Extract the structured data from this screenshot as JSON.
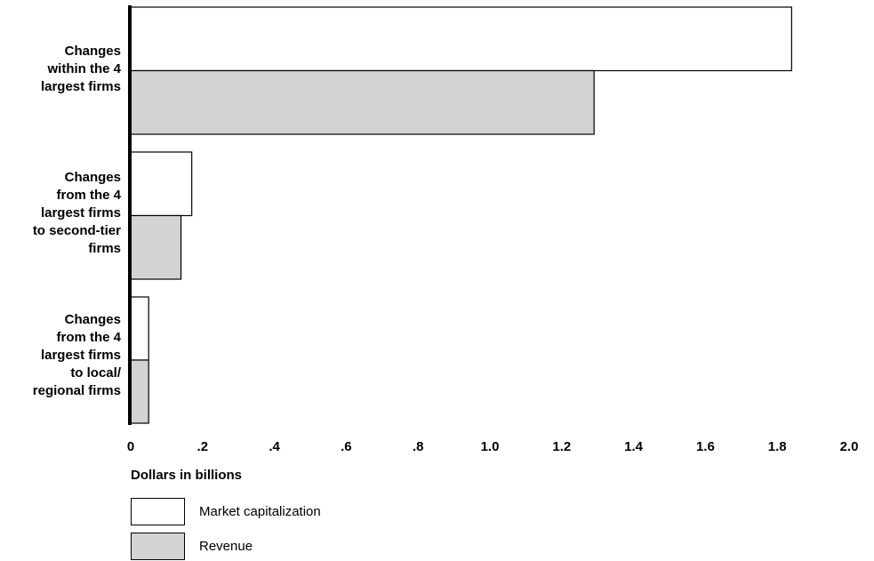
{
  "chart_data": {
    "type": "bar",
    "orientation": "horizontal",
    "categories": [
      "Changes\nwithin the 4\nlargest firms",
      "Changes\nfrom the 4\nlargest firms\nto second-tier\nfirms",
      "Changes\nfrom the 4\nlargest firms\nto local/\nregional firms"
    ],
    "series": [
      {
        "name": "Market capitalization",
        "values": [
          1.84,
          0.17,
          0.05
        ],
        "color": "#ffffff"
      },
      {
        "name": "Revenue",
        "values": [
          1.29,
          0.14,
          0.05
        ],
        "color": "#d3d3d3"
      }
    ],
    "xlabel": "Dollars in billions",
    "xlim": [
      0,
      2.0
    ],
    "xticks": [
      "0",
      ".2",
      ".4",
      ".6",
      ".8",
      "1.0",
      "1.2",
      "1.4",
      "1.6",
      "1.8",
      "2.0"
    ],
    "grid": false,
    "legend_position": "bottom-left"
  }
}
